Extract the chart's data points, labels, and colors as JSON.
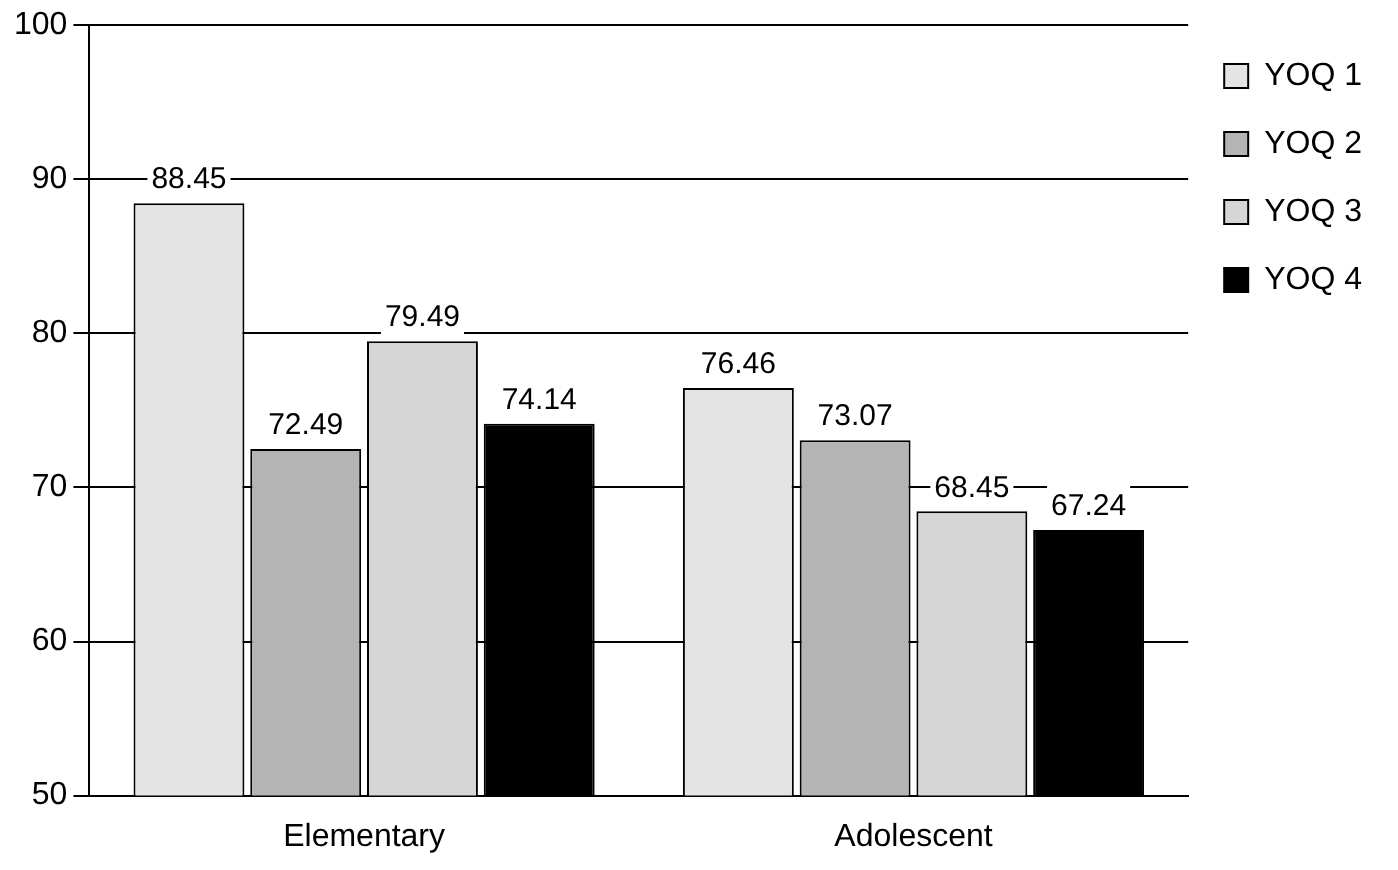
{
  "chart_data": {
    "type": "bar",
    "categories": [
      "Elementary",
      "Adolescent"
    ],
    "series": [
      {
        "name": "YOQ 1",
        "color": "#e4e4e4",
        "values": [
          88.45,
          76.46
        ]
      },
      {
        "name": "YOQ 2",
        "color": "#b4b4b4",
        "values": [
          72.49,
          73.07
        ]
      },
      {
        "name": "YOQ 3",
        "color": "#d6d6d6",
        "values": [
          79.49,
          68.45
        ]
      },
      {
        "name": "YOQ 4",
        "color": "#000000",
        "values": [
          74.14,
          67.24
        ]
      }
    ],
    "ylim": [
      50,
      100
    ],
    "yticks": [
      50,
      60,
      70,
      80,
      90,
      100
    ],
    "grid": "y",
    "legend": "right",
    "data_labels": true
  }
}
